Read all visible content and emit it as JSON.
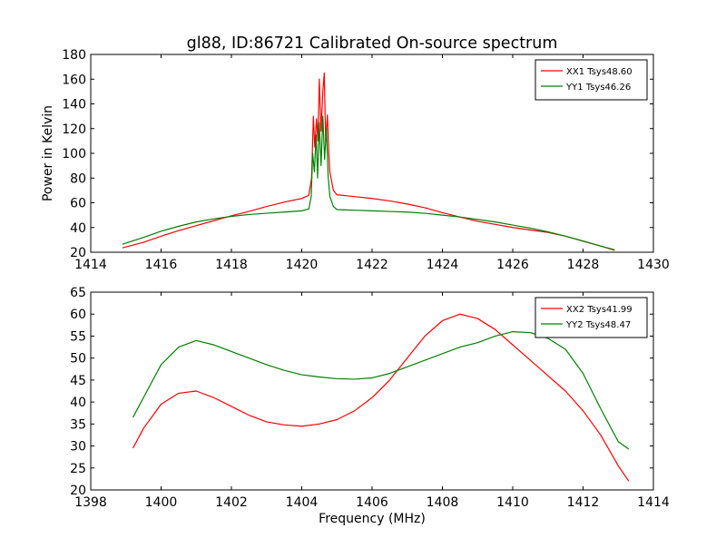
{
  "figure": {
    "title": "gl88, ID:86721 Calibrated On-source spectrum",
    "xlabel": "Frequency (MHz)",
    "ylabel": "Power in Kelvin"
  },
  "chart_data": [
    {
      "type": "line",
      "title": "gl88, ID:86721 Calibrated On-source spectrum",
      "xlabel": "",
      "ylabel": "Power in Kelvin",
      "xlim": [
        1414,
        1430
      ],
      "ylim": [
        20,
        180
      ],
      "xticks": [
        1414,
        1416,
        1418,
        1420,
        1422,
        1424,
        1426,
        1428,
        1430
      ],
      "yticks": [
        20,
        40,
        60,
        80,
        100,
        120,
        140,
        160,
        180
      ],
      "legend": "top-right",
      "series": [
        {
          "name": "XX1 Tsys48.60",
          "color": "#ff0000",
          "points": [
            [
              1414.9,
              23.5
            ],
            [
              1415.5,
              28
            ],
            [
              1416,
              33
            ],
            [
              1416.5,
              37.5
            ],
            [
              1417,
              41.5
            ],
            [
              1417.5,
              45.5
            ],
            [
              1418,
              49.5
            ],
            [
              1418.5,
              53
            ],
            [
              1419,
              57
            ],
            [
              1419.5,
              60.5
            ],
            [
              1420.0,
              63.5
            ],
            [
              1420.2,
              66
            ],
            [
              1420.28,
              80
            ],
            [
              1420.33,
              130
            ],
            [
              1420.37,
              105
            ],
            [
              1420.42,
              128
            ],
            [
              1420.46,
              110
            ],
            [
              1420.5,
              160
            ],
            [
              1420.55,
              118
            ],
            [
              1420.6,
              150
            ],
            [
              1420.64,
              165
            ],
            [
              1420.68,
              110
            ],
            [
              1420.73,
              131
            ],
            [
              1420.77,
              100
            ],
            [
              1420.8,
              85
            ],
            [
              1420.9,
              70
            ],
            [
              1421.0,
              66.5
            ],
            [
              1421.5,
              65
            ],
            [
              1422,
              63.5
            ],
            [
              1422.5,
              61.5
            ],
            [
              1423,
              59
            ],
            [
              1423.5,
              56
            ],
            [
              1424,
              52
            ],
            [
              1424.5,
              48.5
            ],
            [
              1425,
              45
            ],
            [
              1425.5,
              42.5
            ],
            [
              1426,
              40
            ],
            [
              1426.5,
              38
            ],
            [
              1427,
              36
            ],
            [
              1427.5,
              33
            ],
            [
              1428,
              29
            ],
            [
              1428.5,
              25
            ],
            [
              1428.9,
              21.5
            ]
          ]
        },
        {
          "name": "YY1 Tsys46.26",
          "color": "#008000",
          "points": [
            [
              1414.9,
              26.5
            ],
            [
              1415.5,
              32
            ],
            [
              1416,
              37
            ],
            [
              1416.5,
              41
            ],
            [
              1417,
              44.5
            ],
            [
              1417.5,
              47
            ],
            [
              1418,
              49
            ],
            [
              1418.5,
              50.5
            ],
            [
              1419,
              51.5
            ],
            [
              1419.5,
              52.5
            ],
            [
              1420.0,
              53.5
            ],
            [
              1420.2,
              55
            ],
            [
              1420.27,
              65
            ],
            [
              1420.31,
              100
            ],
            [
              1420.36,
              85
            ],
            [
              1420.41,
              115
            ],
            [
              1420.45,
              80
            ],
            [
              1420.5,
              125
            ],
            [
              1420.55,
              90
            ],
            [
              1420.6,
              130
            ],
            [
              1420.65,
              95
            ],
            [
              1420.7,
              120
            ],
            [
              1420.75,
              82
            ],
            [
              1420.8,
              65
            ],
            [
              1420.9,
              57
            ],
            [
              1421.0,
              54.5
            ],
            [
              1421.5,
              54
            ],
            [
              1422,
              53.5
            ],
            [
              1422.5,
              53
            ],
            [
              1423,
              52.5
            ],
            [
              1423.5,
              51.5
            ],
            [
              1424,
              50
            ],
            [
              1424.5,
              48.5
            ],
            [
              1425,
              46.5
            ],
            [
              1425.5,
              44.5
            ],
            [
              1426,
              42
            ],
            [
              1426.5,
              39.5
            ],
            [
              1427,
              36.5
            ],
            [
              1427.5,
              33
            ],
            [
              1428,
              29
            ],
            [
              1428.5,
              25
            ],
            [
              1428.9,
              22
            ]
          ]
        }
      ]
    },
    {
      "type": "line",
      "title": "",
      "xlabel": "Frequency (MHz)",
      "ylabel": "",
      "xlim": [
        1398,
        1414
      ],
      "ylim": [
        20,
        65
      ],
      "xticks": [
        1398,
        1400,
        1402,
        1404,
        1406,
        1408,
        1410,
        1412,
        1414
      ],
      "yticks": [
        20,
        25,
        30,
        35,
        40,
        45,
        50,
        55,
        60,
        65
      ],
      "legend": "top-right",
      "series": [
        {
          "name": "XX2 Tsys41.99",
          "color": "#ff0000",
          "points": [
            [
              1399.2,
              29.5
            ],
            [
              1399.5,
              34
            ],
            [
              1400,
              39.5
            ],
            [
              1400.5,
              42
            ],
            [
              1401,
              42.5
            ],
            [
              1401.5,
              41
            ],
            [
              1402,
              39
            ],
            [
              1402.5,
              37
            ],
            [
              1403,
              35.5
            ],
            [
              1403.5,
              34.8
            ],
            [
              1404,
              34.5
            ],
            [
              1404.5,
              35
            ],
            [
              1405,
              36
            ],
            [
              1405.5,
              38
            ],
            [
              1406,
              41
            ],
            [
              1406.5,
              45
            ],
            [
              1407,
              50
            ],
            [
              1407.5,
              55
            ],
            [
              1408,
              58.5
            ],
            [
              1408.5,
              60
            ],
            [
              1409,
              59
            ],
            [
              1409.5,
              56.5
            ],
            [
              1410,
              53
            ],
            [
              1410.5,
              49.5
            ],
            [
              1411,
              46
            ],
            [
              1411.5,
              42.5
            ],
            [
              1412,
              38
            ],
            [
              1412.5,
              32.5
            ],
            [
              1413,
              25.5
            ],
            [
              1413.3,
              22
            ]
          ]
        },
        {
          "name": "YY2 Tsys48.47",
          "color": "#008000",
          "points": [
            [
              1399.2,
              36.5
            ],
            [
              1399.5,
              41
            ],
            [
              1400,
              48.5
            ],
            [
              1400.5,
              52.5
            ],
            [
              1401,
              54
            ],
            [
              1401.5,
              53
            ],
            [
              1402,
              51.5
            ],
            [
              1402.5,
              50
            ],
            [
              1403,
              48.5
            ],
            [
              1403.5,
              47.2
            ],
            [
              1404,
              46.2
            ],
            [
              1404.5,
              45.7
            ],
            [
              1405,
              45.3
            ],
            [
              1405.5,
              45.2
            ],
            [
              1406,
              45.5
            ],
            [
              1406.5,
              46.5
            ],
            [
              1407,
              48
            ],
            [
              1407.5,
              49.5
            ],
            [
              1408,
              51
            ],
            [
              1408.5,
              52.5
            ],
            [
              1409,
              53.5
            ],
            [
              1409.5,
              55
            ],
            [
              1410,
              56
            ],
            [
              1410.5,
              55.8
            ],
            [
              1411,
              54.5
            ],
            [
              1411.5,
              52
            ],
            [
              1412,
              46.5
            ],
            [
              1412.5,
              38.5
            ],
            [
              1413,
              31
            ],
            [
              1413.3,
              29.3
            ]
          ]
        }
      ]
    }
  ]
}
